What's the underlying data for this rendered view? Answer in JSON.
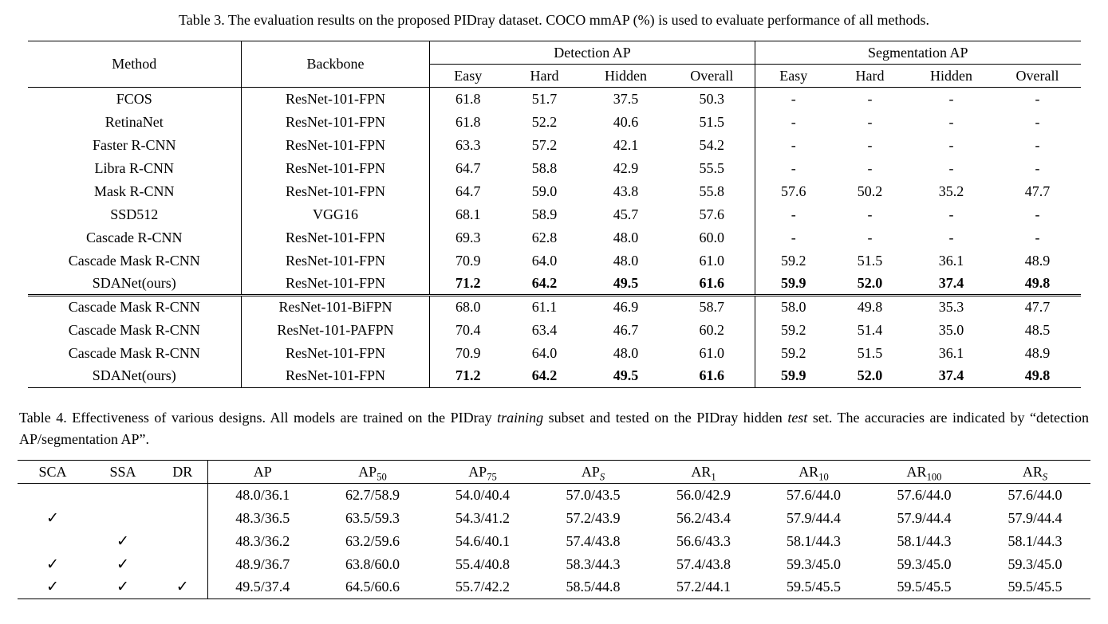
{
  "table3": {
    "caption": "Table 3. The evaluation results on the proposed PIDray dataset. COCO mmAP (%) is used to evaluate performance of all methods.",
    "col_headers": {
      "method": "Method",
      "backbone": "Backbone",
      "detection": "Detection AP",
      "segmentation": "Segmentation AP",
      "sub": [
        "Easy",
        "Hard",
        "Hidden",
        "Overall",
        "Easy",
        "Hard",
        "Hidden",
        "Overall"
      ]
    },
    "groups": [
      {
        "rows": [
          {
            "method": "FCOS",
            "backbone": "ResNet-101-FPN",
            "bold": false,
            "values": [
              "61.8",
              "51.7",
              "37.5",
              "50.3",
              "-",
              "-",
              "-",
              "-"
            ]
          },
          {
            "method": "RetinaNet",
            "backbone": "ResNet-101-FPN",
            "bold": false,
            "values": [
              "61.8",
              "52.2",
              "40.6",
              "51.5",
              "-",
              "-",
              "-",
              "-"
            ]
          },
          {
            "method": "Faster R-CNN",
            "backbone": "ResNet-101-FPN",
            "bold": false,
            "values": [
              "63.3",
              "57.2",
              "42.1",
              "54.2",
              "-",
              "-",
              "-",
              "-"
            ]
          },
          {
            "method": "Libra R-CNN",
            "backbone": "ResNet-101-FPN",
            "bold": false,
            "values": [
              "64.7",
              "58.8",
              "42.9",
              "55.5",
              "-",
              "-",
              "-",
              "-"
            ]
          },
          {
            "method": "Mask R-CNN",
            "backbone": "ResNet-101-FPN",
            "bold": false,
            "values": [
              "64.7",
              "59.0",
              "43.8",
              "55.8",
              "57.6",
              "50.2",
              "35.2",
              "47.7"
            ]
          },
          {
            "method": "SSD512",
            "backbone": "VGG16",
            "bold": false,
            "values": [
              "68.1",
              "58.9",
              "45.7",
              "57.6",
              "-",
              "-",
              "-",
              "-"
            ]
          },
          {
            "method": "Cascade R-CNN",
            "backbone": "ResNet-101-FPN",
            "bold": false,
            "values": [
              "69.3",
              "62.8",
              "48.0",
              "60.0",
              "-",
              "-",
              "-",
              "-"
            ]
          },
          {
            "method": "Cascade Mask R-CNN",
            "backbone": "ResNet-101-FPN",
            "bold": false,
            "values": [
              "70.9",
              "64.0",
              "48.0",
              "61.0",
              "59.2",
              "51.5",
              "36.1",
              "48.9"
            ]
          },
          {
            "method": "SDANet(ours)",
            "backbone": "ResNet-101-FPN",
            "bold": true,
            "values": [
              "71.2",
              "64.2",
              "49.5",
              "61.6",
              "59.9",
              "52.0",
              "37.4",
              "49.8"
            ]
          }
        ]
      },
      {
        "rows": [
          {
            "method": "Cascade Mask R-CNN",
            "backbone": "ResNet-101-BiFPN",
            "bold": false,
            "values": [
              "68.0",
              "61.1",
              "46.9",
              "58.7",
              "58.0",
              "49.8",
              "35.3",
              "47.7"
            ]
          },
          {
            "method": "Cascade Mask R-CNN",
            "backbone": "ResNet-101-PAFPN",
            "bold": false,
            "values": [
              "70.4",
              "63.4",
              "46.7",
              "60.2",
              "59.2",
              "51.4",
              "35.0",
              "48.5"
            ]
          },
          {
            "method": "Cascade Mask R-CNN",
            "backbone": "ResNet-101-FPN",
            "bold": false,
            "values": [
              "70.9",
              "64.0",
              "48.0",
              "61.0",
              "59.2",
              "51.5",
              "36.1",
              "48.9"
            ]
          },
          {
            "method": "SDANet(ours)",
            "backbone": "ResNet-101-FPN",
            "bold": true,
            "values": [
              "71.2",
              "64.2",
              "49.5",
              "61.6",
              "59.9",
              "52.0",
              "37.4",
              "49.8"
            ]
          }
        ]
      }
    ]
  },
  "table4": {
    "caption": {
      "p1": "Table 4. Effectiveness of various designs. All models are trained on the PIDray ",
      "i1": "training",
      "p2": " subset and tested on the PIDray hidden ",
      "i2": "test",
      "p3": " set. The accuracies are indicated by “detection AP/segmentation AP”."
    },
    "check_headers": [
      "SCA",
      "SSA",
      "DR"
    ],
    "metric_headers": [
      {
        "base": "AP",
        "sub": ""
      },
      {
        "base": "AP",
        "sub": "50"
      },
      {
        "base": "AP",
        "sub": "75"
      },
      {
        "base": "AP",
        "sub": "S",
        "italic_sub": true
      },
      {
        "base": "AR",
        "sub": "1"
      },
      {
        "base": "AR",
        "sub": "10"
      },
      {
        "base": "AR",
        "sub": "100"
      },
      {
        "base": "AR",
        "sub": "S",
        "italic_sub": true
      }
    ],
    "checkmark": "✓",
    "rows": [
      {
        "checks": [
          false,
          false,
          false
        ],
        "values": [
          "48.0/36.1",
          "62.7/58.9",
          "54.0/40.4",
          "57.0/43.5",
          "56.0/42.9",
          "57.6/44.0",
          "57.6/44.0",
          "57.6/44.0"
        ]
      },
      {
        "checks": [
          true,
          false,
          false
        ],
        "values": [
          "48.3/36.5",
          "63.5/59.3",
          "54.3/41.2",
          "57.2/43.9",
          "56.2/43.4",
          "57.9/44.4",
          "57.9/44.4",
          "57.9/44.4"
        ]
      },
      {
        "checks": [
          false,
          true,
          false
        ],
        "values": [
          "48.3/36.2",
          "63.2/59.6",
          "54.6/40.1",
          "57.4/43.8",
          "56.6/43.3",
          "58.1/44.3",
          "58.1/44.3",
          "58.1/44.3"
        ]
      },
      {
        "checks": [
          true,
          true,
          false
        ],
        "values": [
          "48.9/36.7",
          "63.8/60.0",
          "55.4/40.8",
          "58.3/44.3",
          "57.4/43.8",
          "59.3/45.0",
          "59.3/45.0",
          "59.3/45.0"
        ]
      },
      {
        "checks": [
          true,
          true,
          true
        ],
        "values": [
          "49.5/37.4",
          "64.5/60.6",
          "55.7/42.2",
          "58.5/44.8",
          "57.2/44.1",
          "59.5/45.5",
          "59.5/45.5",
          "59.5/45.5"
        ]
      }
    ]
  }
}
